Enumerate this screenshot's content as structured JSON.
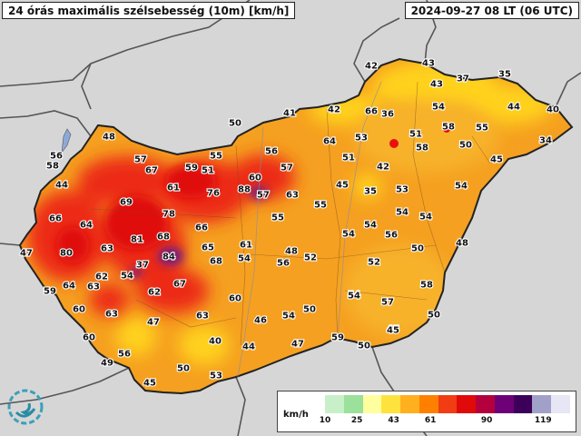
{
  "title_left": "24 órás maximális szélsebesség (10m) [km/h]",
  "title_right": "2024-09-27 08 LT (06 UTC)",
  "legend": {
    "unit": "km/h",
    "ticks": [
      "10",
      "25",
      "43",
      "61",
      "90",
      "119"
    ],
    "colors": [
      "#c8f0c8",
      "#9be09b",
      "#ffffa0",
      "#ffe23c",
      "#ffb01e",
      "#ff8000",
      "#f23c14",
      "#e00a0a",
      "#b4003c",
      "#6e0078",
      "#3c005a",
      "#a0a0c8",
      "#e6e6f5"
    ]
  },
  "colors": {
    "background": "#d9d9d9",
    "country_fill": "#f5a020",
    "neighbour_fill": "#dcdcdc",
    "border": "#333333",
    "high_wind": "#e61414",
    "extreme_wind": "#6e1e82",
    "moderate_wind": "#ffcc00"
  },
  "stations": [
    {
      "v": "56"
    },
    {
      "v": "58"
    },
    {
      "v": "48"
    },
    {
      "v": "44"
    },
    {
      "v": "66"
    },
    {
      "v": "64"
    },
    {
      "v": "47"
    },
    {
      "v": "80"
    },
    {
      "v": "59"
    },
    {
      "v": "64"
    },
    {
      "v": "63"
    },
    {
      "v": "62"
    },
    {
      "v": "60"
    },
    {
      "v": "63"
    },
    {
      "v": "60"
    },
    {
      "v": "49"
    },
    {
      "v": "56"
    },
    {
      "v": "45"
    },
    {
      "v": "57"
    },
    {
      "v": "67"
    },
    {
      "v": "59"
    },
    {
      "v": "51"
    },
    {
      "v": "55"
    },
    {
      "v": "50"
    },
    {
      "v": "61"
    },
    {
      "v": "69"
    },
    {
      "v": "76"
    },
    {
      "v": "78"
    },
    {
      "v": "88"
    },
    {
      "v": "57"
    },
    {
      "v": "60"
    },
    {
      "v": "63"
    },
    {
      "v": "57"
    },
    {
      "v": "56"
    },
    {
      "v": "66"
    },
    {
      "v": "81"
    },
    {
      "v": "68"
    },
    {
      "v": "63"
    },
    {
      "v": "37"
    },
    {
      "v": "84"
    },
    {
      "v": "65"
    },
    {
      "v": "68"
    },
    {
      "v": "54"
    },
    {
      "v": "62"
    },
    {
      "v": "67"
    },
    {
      "v": "61"
    },
    {
      "v": "54"
    },
    {
      "v": "55"
    },
    {
      "v": "47"
    },
    {
      "v": "63"
    },
    {
      "v": "60"
    },
    {
      "v": "46"
    },
    {
      "v": "40"
    },
    {
      "v": "44"
    },
    {
      "v": "50"
    },
    {
      "v": "53"
    },
    {
      "v": "56"
    },
    {
      "v": "48"
    },
    {
      "v": "52"
    },
    {
      "v": "54"
    },
    {
      "v": "50"
    },
    {
      "v": "47"
    },
    {
      "v": "59"
    },
    {
      "v": "50"
    },
    {
      "v": "41"
    },
    {
      "v": "42"
    },
    {
      "v": "66"
    },
    {
      "v": "36"
    },
    {
      "v": "64"
    },
    {
      "v": "53"
    },
    {
      "v": "51"
    },
    {
      "v": "55"
    },
    {
      "v": "45"
    },
    {
      "v": "42"
    },
    {
      "v": "35"
    },
    {
      "v": "53"
    },
    {
      "v": "54"
    },
    {
      "v": "54"
    },
    {
      "v": "54"
    },
    {
      "v": "56"
    },
    {
      "v": "52"
    },
    {
      "v": "54"
    },
    {
      "v": "57"
    },
    {
      "v": "45"
    },
    {
      "v": "42"
    },
    {
      "v": "43"
    },
    {
      "v": "43"
    },
    {
      "v": "37"
    },
    {
      "v": "35"
    },
    {
      "v": "58"
    },
    {
      "v": "54"
    },
    {
      "v": "51"
    },
    {
      "v": "58"
    },
    {
      "v": "55"
    },
    {
      "v": "50"
    },
    {
      "v": "44"
    },
    {
      "v": "40"
    },
    {
      "v": "34"
    },
    {
      "v": "45"
    },
    {
      "v": "54"
    },
    {
      "v": "54"
    },
    {
      "v": "50"
    },
    {
      "v": "48"
    },
    {
      "v": "58"
    },
    {
      "v": "50"
    },
    {
      "v": "45"
    },
    {
      "v": "54"
    },
    {
      "v": "50"
    }
  ]
}
